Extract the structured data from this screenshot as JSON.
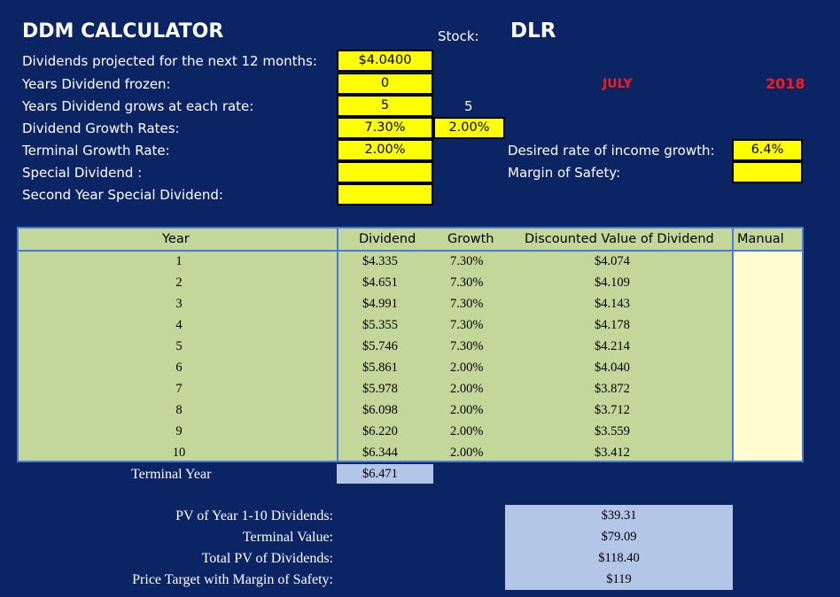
{
  "header": {
    "title": "DDM CALCULATOR",
    "stock_label": "Stock:",
    "stock_value": "DLR",
    "month": "JULY",
    "year": "2018"
  },
  "inputs": {
    "dividends_projected_label": "Dividends projected for the next 12 months:",
    "dividends_projected_value": "$4.0400",
    "years_frozen_label": "Years Dividend frozen:",
    "years_frozen_value": "0",
    "years_grows_label": "Years Dividend grows at each rate:",
    "years_grows_value_1": "5",
    "years_grows_value_2": "5",
    "growth_rates_label": "Dividend Growth Rates:",
    "growth_rate_1": "7.30%",
    "growth_rate_2": "2.00%",
    "terminal_growth_label": "Terminal Growth Rate:",
    "terminal_growth_value": "2.00%",
    "special_dividend_label": "Special Dividend :",
    "special_dividend_value": "",
    "second_special_label": "Second Year Special Dividend:",
    "second_special_value": "",
    "desired_income_label": "Desired rate of income growth:",
    "desired_income_value": "6.4%",
    "margin_safety_label": "Margin of Safety:",
    "margin_safety_value": ""
  },
  "table": {
    "headers": {
      "year": "Year",
      "dividend": "Dividend",
      "growth": "Growth",
      "discounted": "Discounted Value of Dividend",
      "manual": "Manual"
    },
    "rows": [
      {
        "year": "1",
        "dividend": "$4.335",
        "growth": "7.30%",
        "discounted": "$4.074"
      },
      {
        "year": "2",
        "dividend": "$4.651",
        "growth": "7.30%",
        "discounted": "$4.109"
      },
      {
        "year": "3",
        "dividend": "$4.991",
        "growth": "7.30%",
        "discounted": "$4.143"
      },
      {
        "year": "4",
        "dividend": "$5.355",
        "growth": "7.30%",
        "discounted": "$4.178"
      },
      {
        "year": "5",
        "dividend": "$5.746",
        "growth": "7.30%",
        "discounted": "$4.214"
      },
      {
        "year": "6",
        "dividend": "$5.861",
        "growth": "2.00%",
        "discounted": "$4.040"
      },
      {
        "year": "7",
        "dividend": "$5.978",
        "growth": "2.00%",
        "discounted": "$3.872"
      },
      {
        "year": "8",
        "dividend": "$6.098",
        "growth": "2.00%",
        "discounted": "$3.712"
      },
      {
        "year": "9",
        "dividend": "$6.220",
        "growth": "2.00%",
        "discounted": "$3.559"
      },
      {
        "year": "10",
        "dividend": "$6.344",
        "growth": "2.00%",
        "discounted": "$3.412"
      }
    ],
    "terminal_label": "Terminal Year",
    "terminal_value": "$6.471"
  },
  "summary": {
    "pv_label": "PV of Year 1-10 Dividends:",
    "pv_value": "$39.31",
    "terminal_label": "Terminal Value:",
    "terminal_value": "$79.09",
    "total_label": "Total PV of Dividends:",
    "total_value": "$118.40",
    "target_label": "Price Target with Margin of Safety:",
    "target_value": "$119"
  },
  "colors": {
    "background": "#0b2463",
    "input_yellow": "#ffff00",
    "table_green": "#c4d79b",
    "manual_cream": "#fffdd0",
    "summary_blue": "#b4c6e7",
    "accent_red": "#ff1a1a"
  }
}
